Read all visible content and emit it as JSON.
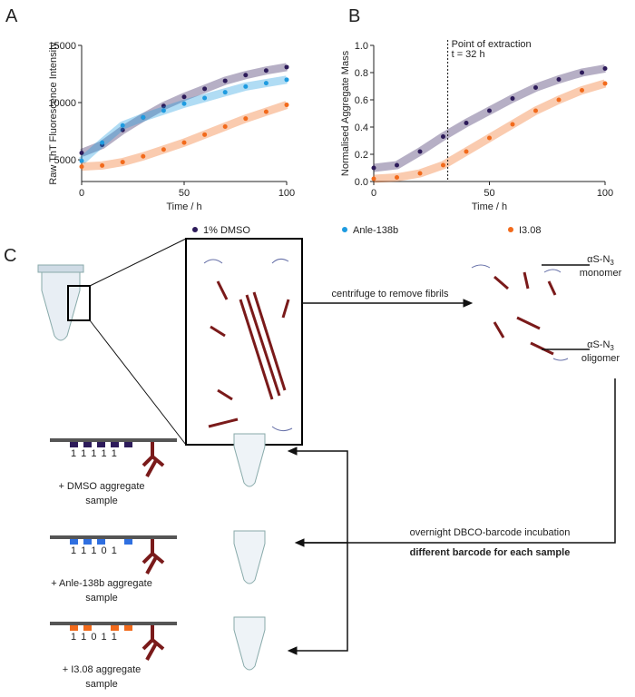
{
  "chart_data": [
    {
      "type": "scatter",
      "panel": "A",
      "x_label": "Time / h",
      "y_label": "Raw ThT Fluorescence Intensity",
      "x": [
        0,
        10,
        20,
        30,
        40,
        50,
        60,
        70,
        80,
        90,
        100
      ],
      "series": [
        {
          "name": "1% DMSO",
          "color": "#2d1b5a",
          "values": [
            5600,
            6300,
            7600,
            8700,
            9700,
            10500,
            11200,
            11900,
            12400,
            12800,
            13100
          ]
        },
        {
          "name": "Anle-138b",
          "color": "#1e9be0",
          "values": [
            4900,
            6500,
            8000,
            8700,
            9300,
            9900,
            10400,
            10900,
            11400,
            11700,
            12000
          ]
        },
        {
          "name": "I3.08",
          "color": "#f26a1b",
          "values": [
            4400,
            4500,
            4800,
            5300,
            5900,
            6500,
            7200,
            7900,
            8600,
            9200,
            9800
          ]
        }
      ],
      "xlim": [
        0,
        100
      ],
      "xticks": [
        0,
        50,
        100
      ],
      "ylim": [
        3100,
        15000
      ],
      "yticks": [
        5000,
        10000,
        15000
      ]
    },
    {
      "type": "scatter",
      "panel": "B",
      "x_label": "Time / h",
      "y_label": "Normalised Aggregate Mass",
      "x": [
        0,
        10,
        20,
        30,
        40,
        50,
        60,
        70,
        80,
        90,
        100
      ],
      "series": [
        {
          "color": "#2d1b5a",
          "values": [
            0.1,
            0.12,
            0.22,
            0.33,
            0.43,
            0.52,
            0.61,
            0.69,
            0.75,
            0.8,
            0.83
          ]
        },
        {
          "color": "#f26a1b",
          "values": [
            0.02,
            0.03,
            0.06,
            0.12,
            0.22,
            0.32,
            0.42,
            0.52,
            0.6,
            0.67,
            0.72
          ]
        }
      ],
      "annotation": {
        "x": 32,
        "lines": [
          "Point of extraction",
          "t = 32 h"
        ]
      },
      "xlim": [
        0,
        100
      ],
      "xticks": [
        0,
        50,
        100
      ],
      "ylim": [
        0,
        1
      ],
      "yticks": [
        {
          "value": 0,
          "label": "0.0"
        },
        0.2,
        0.4,
        0.6,
        0.8,
        {
          "value": 1,
          "label": "1.0"
        }
      ]
    }
  ],
  "diagram": {
    "panel": "C",
    "centrifuge": "centrifuge to remove fibrils",
    "monomer": {
      "name": "αS-N",
      "sub": "3",
      "kind": "monomer"
    },
    "oligomer": {
      "name": "αS-N",
      "sub": "3",
      "kind": "oligomer"
    },
    "incubation": "overnight DBCO-barcode incubation",
    "barcode_note": "different barcode for each sample",
    "samples": [
      {
        "code": "1 1 1 1 1",
        "caption": [
          "+ DMSO aggregate",
          "sample"
        ]
      },
      {
        "code": "1 1 1 0 1",
        "caption": [
          "+ Anle-138b aggregate",
          "sample"
        ]
      },
      {
        "code": "1 1 0 1 1",
        "caption": [
          "+ I3.08 aggregate",
          "sample"
        ]
      }
    ]
  }
}
